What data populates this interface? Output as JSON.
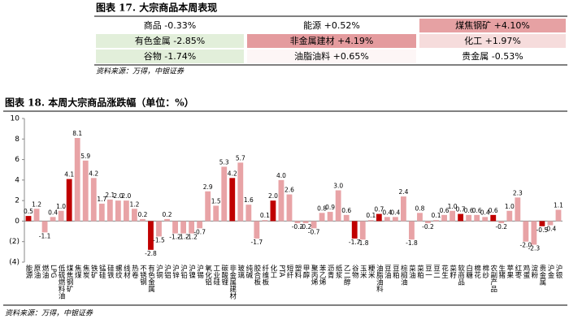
{
  "table": {
    "title": "图表 17. 大宗商品本周表现",
    "rows": [
      [
        {
          "text": "商品 -0.33%",
          "color": "#ffffff"
        },
        {
          "text": "能源 +0.52%",
          "color": "#ffffff"
        },
        {
          "text": "煤焦钢矿 +4.10%",
          "color": "#e6a1a3"
        }
      ],
      [
        {
          "text": "有色金属 -2.85%",
          "color": "#e2efda"
        },
        {
          "text": "非金属建材 +4.19%",
          "color": "#e49b9e"
        },
        {
          "text": "化工 +1.97%",
          "color": "#f6dcdc"
        }
      ],
      [
        {
          "text": "谷物 -1.74%",
          "color": "#e2efda"
        },
        {
          "text": "油脂油料 +0.65%",
          "color": "#fdf6f6"
        },
        {
          "text": "贵金属 -0.53%",
          "color": "#ffffff"
        }
      ]
    ],
    "source": "资料来源：万得，中银证券"
  },
  "chart_data": {
    "type": "bar",
    "title": "图表 18. 本周大宗商品涨跌幅（单位：%）",
    "categories": [
      "能源",
      "原油",
      "燃油",
      "LPG",
      "低硫燃料油",
      "煤焦钢矿",
      "焦煤",
      "焦炭",
      "铁矿",
      "锰硅",
      "硅铁",
      "螺纹",
      "线材",
      "热卷",
      "不锈钢",
      "有色金属",
      "沪铜",
      "沪铝",
      "沪锌",
      "沪铅",
      "沪镍",
      "沪锡",
      "氧化铝",
      "工业硅",
      "碳酸锂",
      "非金属建材",
      "玻璃",
      "纯碱",
      "胶合板",
      "纤维板",
      "化工",
      "PTA",
      "短纤",
      "塑料",
      "甲醇",
      "聚丙烯",
      "苯乙烯",
      "沥青",
      "纸浆",
      "乙二醇",
      "谷物",
      "玉米",
      "粳米",
      "油脂油料",
      "豆油",
      "豆粕",
      "棕榈油",
      "菜油",
      "菜粕",
      "豆一",
      "豆二",
      "花生",
      "菜籽",
      "软商品",
      "白糖",
      "棉花",
      "棉纱",
      "农副产品",
      "生猪",
      "苹果",
      "红枣",
      "鸡蛋",
      "淀粉",
      "贵金属",
      "沪金",
      "沪银"
    ],
    "values": [
      0.5,
      1.2,
      -1.1,
      0.4,
      1.0,
      4.1,
      8.1,
      5.9,
      4.2,
      1.7,
      2.1,
      2.0,
      2.0,
      1.2,
      0.2,
      -2.8,
      -1.5,
      0.2,
      -1.2,
      -1.2,
      -1.2,
      -0.7,
      2.9,
      1.5,
      5.3,
      4.2,
      5.7,
      1.6,
      -1.7,
      0.1,
      2.0,
      4.0,
      2.6,
      -0.2,
      -0.2,
      -0.7,
      0.8,
      0.9,
      3.0,
      0.6,
      -1.7,
      -1.8,
      0.1,
      0.7,
      0.4,
      0.4,
      2.4,
      -1.8,
      0.8,
      -0.2,
      0.1,
      0.6,
      1.0,
      0.7,
      0.6,
      0.6,
      0.4,
      0.6,
      -0.2,
      1.0,
      2.3,
      -2.0,
      -2.3,
      -0.5,
      -0.4,
      1.1
    ],
    "value_labels": [
      "0.5",
      "1.2",
      "-1.1",
      "0.4",
      "1.0",
      "4.1",
      "8.1",
      "5.9",
      "4.2",
      "1.7",
      "2.1",
      "2.0",
      "2.0",
      "1.2",
      "0.2",
      "-2.8",
      "-1.5",
      "0.2",
      "-1.2",
      "-1.2",
      "-1.2",
      "-0.7",
      "2.9",
      "1.5",
      "5.3",
      "4.2",
      "5.7",
      "1.6",
      "-1.7",
      "0.1",
      "2.0",
      "4.0",
      "2.6",
      "-0.2",
      "-0.2",
      "-0.7",
      "0.8",
      "0.9",
      "3.0",
      "0.6",
      "-1.7",
      "-1.8",
      "0.1",
      "0.7",
      "0.4",
      "0.4",
      "2.4",
      "-1.8",
      "0.8",
      "-0.2",
      "0.1",
      "0.6",
      "1.0",
      "0.7",
      "0.6",
      "0.6",
      "0.4",
      "0.6",
      "-0.2",
      "1.0",
      "2.3",
      "-2.0",
      "-2.3",
      "-0.5",
      "-0.4",
      "1.1"
    ],
    "colors": [
      "#c00000",
      "#e8a3a6",
      "#e8a3a6",
      "#e8a3a6",
      "#e8a3a6",
      "#c00000",
      "#e8a3a6",
      "#e8a3a6",
      "#e8a3a6",
      "#e8a3a6",
      "#e8a3a6",
      "#e8a3a6",
      "#e8a3a6",
      "#e8a3a6",
      "#e8a3a6",
      "#c00000",
      "#e8a3a6",
      "#e8a3a6",
      "#e8a3a6",
      "#e8a3a6",
      "#e8a3a6",
      "#e8a3a6",
      "#e8a3a6",
      "#e8a3a6",
      "#e8a3a6",
      "#c00000",
      "#e8a3a6",
      "#e8a3a6",
      "#e8a3a6",
      "#e8a3a6",
      "#c00000",
      "#e8a3a6",
      "#e8a3a6",
      "#e8a3a6",
      "#e8a3a6",
      "#e8a3a6",
      "#e8a3a6",
      "#e8a3a6",
      "#e8a3a6",
      "#e8a3a6",
      "#c00000",
      "#e8a3a6",
      "#e8a3a6",
      "#c00000",
      "#e8a3a6",
      "#e8a3a6",
      "#e8a3a6",
      "#e8a3a6",
      "#e8a3a6",
      "#e8a3a6",
      "#e8a3a6",
      "#e8a3a6",
      "#e8a3a6",
      "#c00000",
      "#e8a3a6",
      "#e8a3a6",
      "#e8a3a6",
      "#c00000",
      "#e8a3a6",
      "#e8a3a6",
      "#e8a3a6",
      "#e8a3a6",
      "#e8a3a6",
      "#c00000",
      "#e8a3a6",
      "#e8a3a6"
    ],
    "ylim": [
      -4,
      10
    ],
    "yticks": [
      {
        "value": -4,
        "label": "(4)"
      },
      {
        "value": -2,
        "label": "(2)"
      },
      0,
      2,
      4,
      6,
      8,
      10
    ],
    "grid": false,
    "source": "资料来源：万得，中银证券"
  }
}
